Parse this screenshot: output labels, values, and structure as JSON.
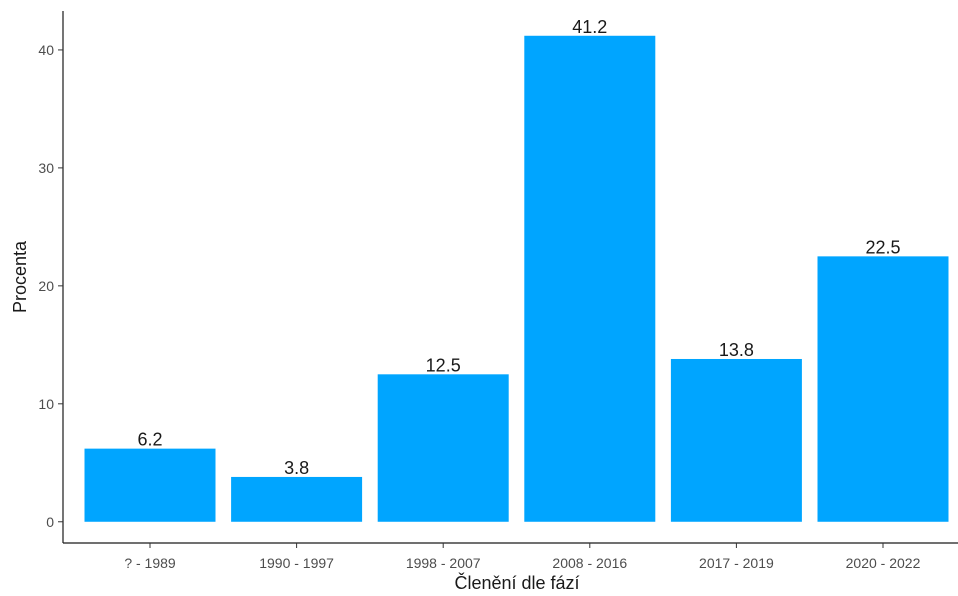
{
  "chart_data": {
    "type": "bar",
    "categories": [
      "? - 1989",
      "1990 - 1997",
      "1998 - 2007",
      "2008 - 2016",
      "2017 - 2019",
      "2020 - 2022"
    ],
    "values": [
      6.2,
      3.8,
      12.5,
      41.2,
      13.8,
      22.5
    ],
    "data_labels": [
      "6.2",
      "3.8",
      "12.5",
      "41.2",
      "13.8",
      "22.5"
    ],
    "xlabel": "Členění dle fází",
    "ylabel": "Procenta",
    "yticks": [
      0,
      10,
      20,
      30,
      40
    ],
    "ylim": [
      -1.8,
      43.3
    ],
    "bar_color": "#00a5ff",
    "grid": false,
    "legend": "none"
  }
}
